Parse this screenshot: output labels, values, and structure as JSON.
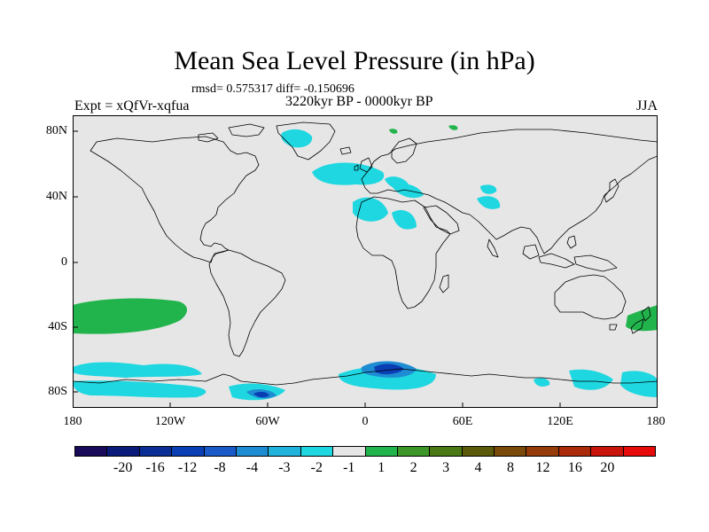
{
  "title": "Mean Sea Level Pressure (in hPa)",
  "stats": "rmsd= 0.575317 diff= -0.150696",
  "expt": "Expt = xQfVr-xqfua",
  "period": "3220kyr BP - 0000kyr BP",
  "season": "JJA",
  "map": {
    "lat_labels": [
      "80N",
      "40N",
      "0",
      "40S",
      "80S"
    ],
    "lon_labels": [
      "180",
      "120W",
      "60W",
      "0",
      "60E",
      "120E",
      "180"
    ],
    "ocean_color": "#e6e6e6",
    "coast_color": "#000000"
  },
  "legend": {
    "colors": [
      "#1a0a5a",
      "#0a1a7a",
      "#0a2e96",
      "#0a3eb4",
      "#1a5ac8",
      "#1e8cd2",
      "#20b4dc",
      "#1ed7e0",
      "#e6e6e6",
      "#22b44c",
      "#3c9628",
      "#4a7814",
      "#5a5a0a",
      "#7a4a0a",
      "#963c0a",
      "#aa2a0a",
      "#c8140a",
      "#e60a0a"
    ],
    "labels": [
      "-20",
      "-16",
      "-12",
      "-8",
      "-4",
      "-3",
      "-2",
      "-1",
      "1",
      "2",
      "3",
      "4",
      "8",
      "12",
      "16",
      "20"
    ]
  }
}
